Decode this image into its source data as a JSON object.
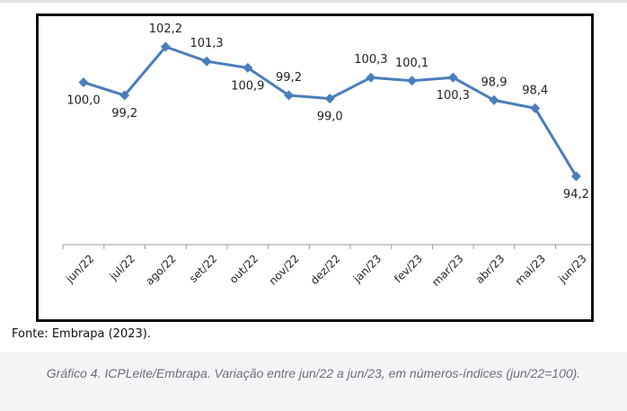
{
  "chart_data": {
    "type": "line",
    "categories": [
      "jun/22",
      "jul/22",
      "ago/22",
      "set/22",
      "out/22",
      "nov/22",
      "dez/22",
      "jan/23",
      "fev/23",
      "mar/23",
      "abr/23",
      "mai/23",
      "jun/23"
    ],
    "values": [
      100.0,
      99.2,
      102.2,
      101.3,
      100.9,
      99.2,
      99.0,
      100.3,
      100.1,
      100.3,
      98.9,
      98.4,
      94.2
    ],
    "value_labels": [
      "100,0",
      "99,2",
      "102,2",
      "101,3",
      "100,9",
      "99,2",
      "99,0",
      "100,3",
      "100,1",
      "100,3",
      "98,9",
      "98,4",
      "94,2"
    ],
    "label_positions": [
      "below",
      "below",
      "above",
      "above",
      "below",
      "above",
      "below",
      "above",
      "above",
      "below",
      "above",
      "above",
      "below"
    ],
    "series_color": "#4a7ebb",
    "title": "",
    "xlabel": "",
    "ylabel": "",
    "ylim": [
      90,
      104
    ],
    "grid": false,
    "legend": "none"
  },
  "source_text": "Fonte: Embrapa (2023).",
  "caption_text": "Gráfico 4. ICPLeite/Embrapa. Variação entre jun/22 a jun/23, em números-índices (jun/22=100)."
}
